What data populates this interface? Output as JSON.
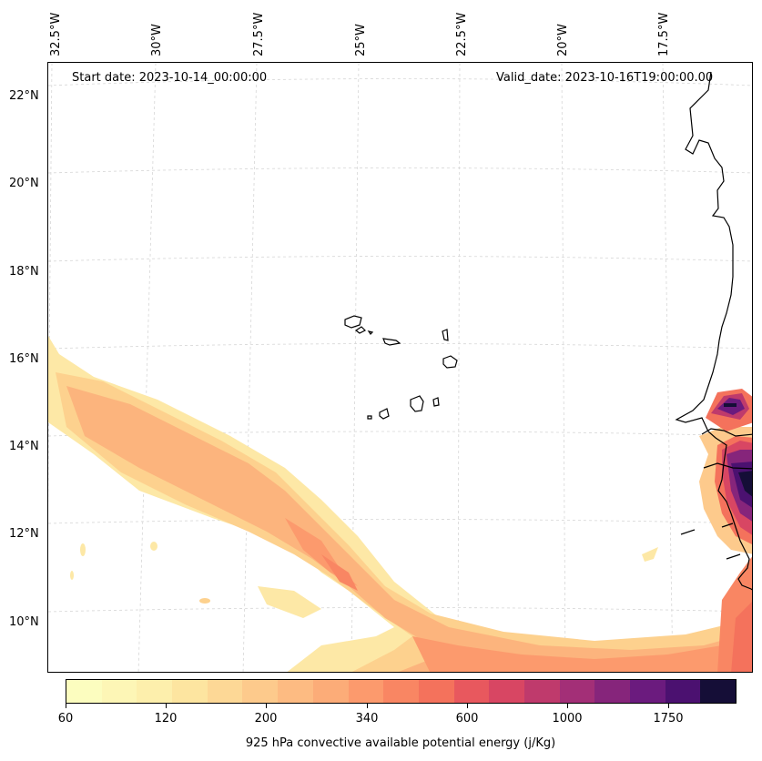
{
  "header": {
    "start_date": "Start date: 2023-10-14_00:00:00",
    "valid_date": "Valid_date: 2023-10-16T19:00:00.00"
  },
  "longitude_labels": [
    "32.5°W",
    "30°W",
    "27.5°W",
    "25°W",
    "22.5°W",
    "20°W",
    "17.5°W"
  ],
  "latitude_labels": [
    "22°N",
    "20°N",
    "18°N",
    "16°N",
    "14°N",
    "12°N",
    "10°N"
  ],
  "colorbar": {
    "title": "925 hPa convective available potential energy (j/Kg)",
    "tick_labels": [
      "60",
      "120",
      "200",
      "340",
      "600",
      "1000",
      "1750"
    ],
    "colors": [
      "#fcfdbf",
      "#fdf6b6",
      "#fdefac",
      "#fde5a0",
      "#fdd896",
      "#fdca8c",
      "#fdbb82",
      "#fcac78",
      "#fc9a6d",
      "#f98663",
      "#f4725c",
      "#e8585e",
      "#d84663",
      "#bf3a6c",
      "#a32f77",
      "#86257b",
      "#6b1b7e",
      "#4b1170",
      "#150e37"
    ]
  },
  "map": {
    "region": "Eastern Atlantic / West Africa coast, Cape Verde",
    "field": "925 hPa CAPE",
    "features": [
      "coastline",
      "cape-verde-islands",
      "gridlines"
    ]
  }
}
